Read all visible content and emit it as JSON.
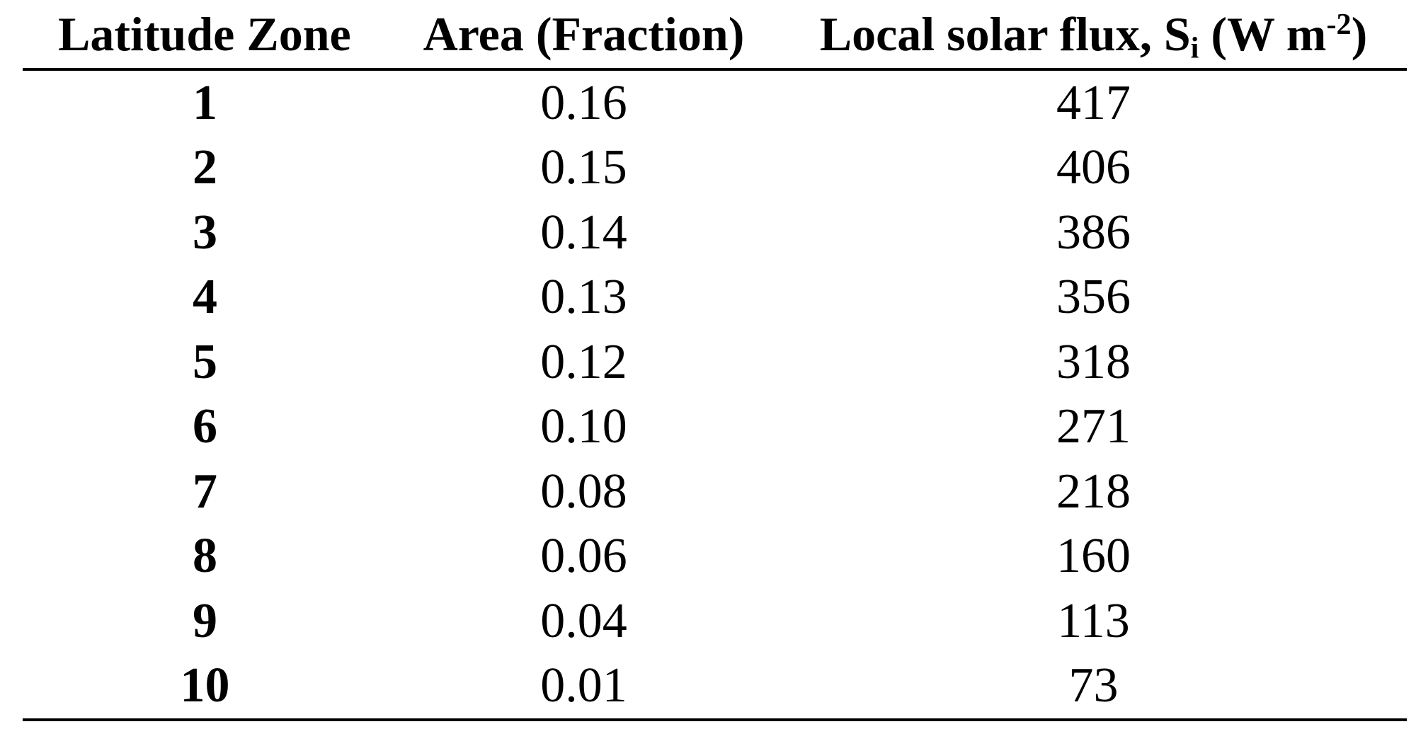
{
  "table": {
    "headers": {
      "zone": "Latitude Zone",
      "area": "Area (Fraction)",
      "flux": {
        "prefix": "Local solar flux, S",
        "subscript": "i",
        "unit_start": " (W m",
        "superscript": "-2",
        "unit_end": ")"
      }
    },
    "rows": [
      {
        "zone": "1",
        "area": "0.16",
        "flux": "417"
      },
      {
        "zone": "2",
        "area": "0.15",
        "flux": "406"
      },
      {
        "zone": "3",
        "area": "0.14",
        "flux": "386"
      },
      {
        "zone": "4",
        "area": "0.13",
        "flux": "356"
      },
      {
        "zone": "5",
        "area": "0.12",
        "flux": "318"
      },
      {
        "zone": "6",
        "area": "0.10",
        "flux": "271"
      },
      {
        "zone": "7",
        "area": "0.08",
        "flux": "218"
      },
      {
        "zone": "8",
        "area": "0.06",
        "flux": "160"
      },
      {
        "zone": "9",
        "area": "0.04",
        "flux": "113"
      },
      {
        "zone": "10",
        "area": "0.01",
        "flux": "73"
      }
    ]
  }
}
